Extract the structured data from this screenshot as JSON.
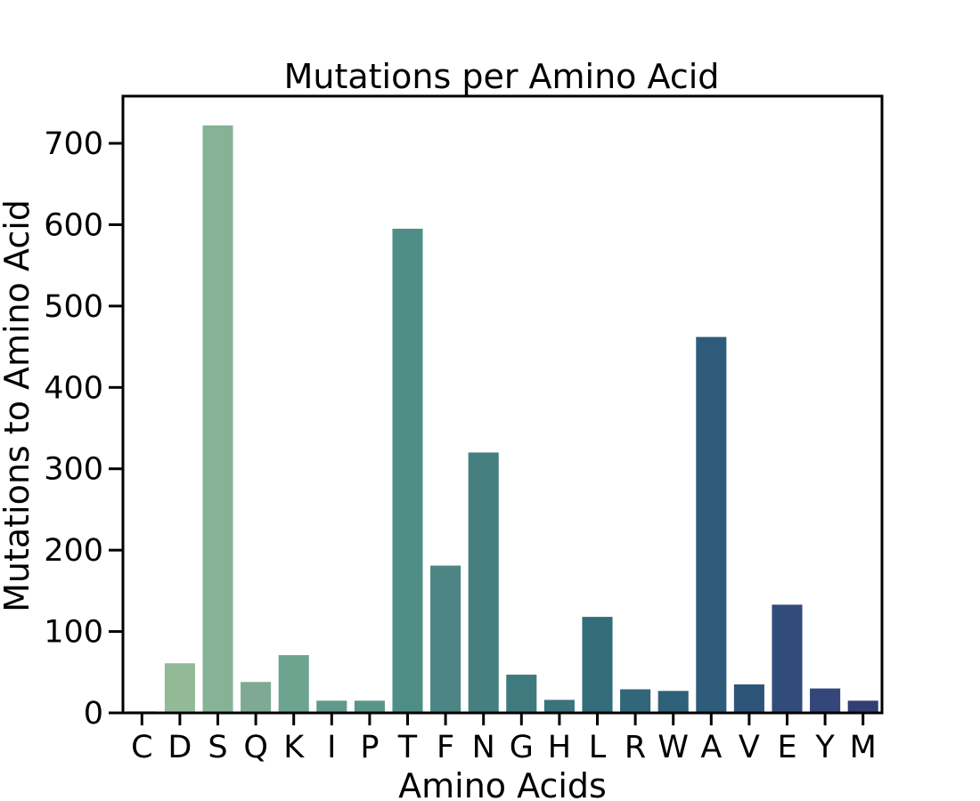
{
  "chart_data": {
    "type": "bar",
    "title": "Mutations per Amino Acid",
    "xlabel": "Amino Acids",
    "ylabel": "Mutations to Amino Acid",
    "categories": [
      "C",
      "D",
      "S",
      "Q",
      "K",
      "I",
      "P",
      "T",
      "F",
      "N",
      "G",
      "H",
      "L",
      "R",
      "W",
      "A",
      "V",
      "E",
      "Y",
      "M"
    ],
    "values": [
      2,
      61,
      722,
      38,
      71,
      15,
      15,
      595,
      181,
      320,
      47,
      16,
      118,
      29,
      27,
      462,
      35,
      133,
      30,
      15
    ],
    "colors": [
      "#a6c9a0",
      "#93ba96",
      "#86b396",
      "#7eaa93",
      "#6da48f",
      "#61998b",
      "#5a9589",
      "#4f8e86",
      "#4c8583",
      "#457f80",
      "#3f7a7e",
      "#3a737d",
      "#336c7b",
      "#316779",
      "#2f6178",
      "#2e5b7a",
      "#2f547a",
      "#324c7a",
      "#34467a",
      "#333e74"
    ],
    "yticks": [
      0,
      100,
      200,
      300,
      400,
      500,
      600,
      700
    ],
    "ylim": [
      0,
      758
    ],
    "grid": false,
    "legend": "none"
  }
}
